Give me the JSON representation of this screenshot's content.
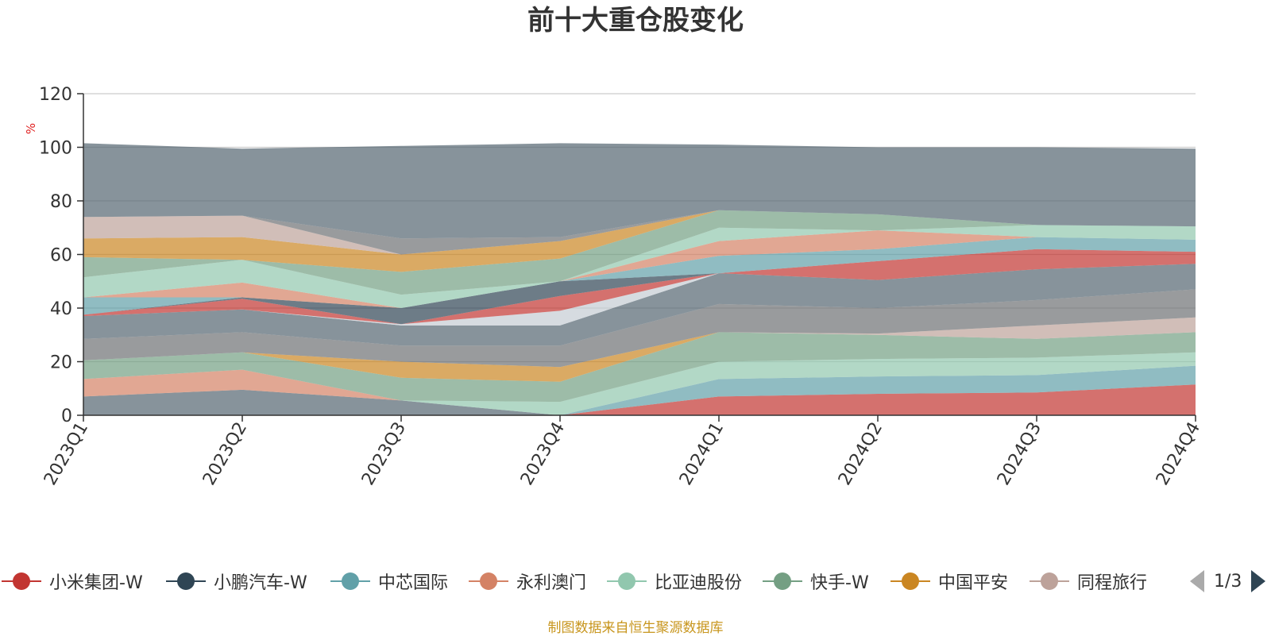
{
  "colors": {
    "xiaomi": "#c23531",
    "xpeng": "#2f4554",
    "smic": "#61a0a8",
    "wynn": "#d48265",
    "byd": "#91c7ae",
    "kuaishou": "#749f83",
    "pingan": "#ca8622",
    "tongcheng": "#bda29a",
    "s9": "#6e7074",
    "s10": "#546570",
    "s11": "#c4ccd3"
  },
  "chart_data": {
    "type": "area",
    "stacked": true,
    "title": "前十大重仓股变化",
    "ylabel": "%",
    "ylim": [
      0,
      120
    ],
    "yticks": [
      0,
      20,
      40,
      60,
      80,
      100,
      120
    ],
    "grid": true,
    "categories": [
      "2023Q1",
      "2023Q2",
      "2023Q3",
      "2023Q4",
      "2024Q1",
      "2024Q2",
      "2024Q3",
      "2024Q4"
    ],
    "series": [
      {
        "name": "小米集团-W",
        "color_key": "xiaomi",
        "values": [
          0,
          0,
          0,
          0,
          7,
          8,
          8.5,
          11.5
        ]
      },
      {
        "color_key": "s10",
        "values": [
          7,
          9.5,
          5.5,
          0,
          0,
          0,
          0,
          0
        ]
      },
      {
        "name": "中芯国际",
        "color_key": "smic",
        "values": [
          0,
          0,
          0,
          0,
          6.5,
          6.5,
          6.5,
          7
        ]
      },
      {
        "name": "永利澳门",
        "color_key": "wynn",
        "values": [
          6.5,
          7.5,
          0,
          0,
          0,
          0,
          0,
          0
        ]
      },
      {
        "name": "比亚迪股份",
        "color_key": "byd",
        "values": [
          0,
          0,
          0,
          5,
          6.5,
          6.5,
          6.5,
          5
        ]
      },
      {
        "name": "快手-W",
        "color_key": "kuaishou",
        "values": [
          7,
          6.5,
          8.5,
          7.5,
          11,
          9,
          7,
          7.5
        ]
      },
      {
        "name": "中国平安",
        "color_key": "pingan",
        "values": [
          0,
          0,
          6,
          5.5,
          0,
          0,
          0,
          0
        ]
      },
      {
        "name": "同程旅行",
        "color_key": "tongcheng",
        "values": [
          0,
          0,
          0,
          0,
          0,
          0.5,
          5,
          5.5
        ]
      },
      {
        "color_key": "s9",
        "values": [
          8,
          7.5,
          6,
          8,
          10.5,
          9.5,
          9.5,
          10.5
        ]
      },
      {
        "color_key": "s10",
        "values": [
          8.5,
          8.5,
          7.5,
          7.5,
          11.5,
          10.5,
          11.5,
          9.5
        ]
      },
      {
        "color_key": "s11",
        "values": [
          0,
          0,
          0.5,
          5.5,
          0,
          0,
          0,
          0
        ]
      },
      {
        "name": "小米集团-W",
        "color_key": "xiaomi",
        "values": [
          0.5,
          4,
          0,
          5.5,
          0,
          7,
          7.5,
          4.5
        ]
      },
      {
        "name": "小鹏汽车-W",
        "color_key": "xpeng",
        "values": [
          0,
          0.5,
          6,
          5.5,
          0,
          0,
          0,
          0
        ]
      },
      {
        "name": "中芯国际",
        "color_key": "smic",
        "values": [
          6.5,
          0,
          0,
          0,
          6.5,
          4.5,
          4.5,
          4.5
        ]
      },
      {
        "name": "永利澳门",
        "color_key": "wynn",
        "values": [
          0,
          5.5,
          0,
          0,
          5.5,
          7,
          0,
          0
        ]
      },
      {
        "name": "比亚迪股份",
        "color_key": "byd",
        "values": [
          7.5,
          8.5,
          5,
          0,
          5,
          0,
          4.5,
          5
        ]
      },
      {
        "name": "快手-W",
        "color_key": "kuaishou",
        "values": [
          7.5,
          0,
          8.5,
          8.5,
          6.5,
          6,
          0,
          0
        ]
      },
      {
        "name": "中国平安",
        "color_key": "pingan",
        "values": [
          7,
          8.5,
          6.5,
          6.5,
          0,
          0,
          0,
          0
        ]
      },
      {
        "name": "同程旅行",
        "color_key": "tongcheng",
        "values": [
          8,
          8,
          0,
          0,
          0,
          0,
          0,
          0
        ]
      },
      {
        "color_key": "s9",
        "values": [
          0,
          0,
          6,
          1.5,
          0,
          0,
          0,
          0
        ]
      },
      {
        "color_key": "s10",
        "values": [
          27.5,
          25,
          34.5,
          35,
          24.5,
          25,
          29,
          29
        ]
      }
    ]
  },
  "legend": {
    "items": [
      {
        "label": "小米集团-W",
        "color_key": "xiaomi"
      },
      {
        "label": "小鹏汽车-W",
        "color_key": "xpeng"
      },
      {
        "label": "中芯国际",
        "color_key": "smic"
      },
      {
        "label": "永利澳门",
        "color_key": "wynn"
      },
      {
        "label": "比亚迪股份",
        "color_key": "byd"
      },
      {
        "label": "快手-W",
        "color_key": "kuaishou"
      },
      {
        "label": "中国平安",
        "color_key": "pingan"
      },
      {
        "label": "同程旅行",
        "color_key": "tongcheng"
      }
    ],
    "pager": "1/3"
  },
  "source_note": "制图数据来自恒生聚源数据库"
}
